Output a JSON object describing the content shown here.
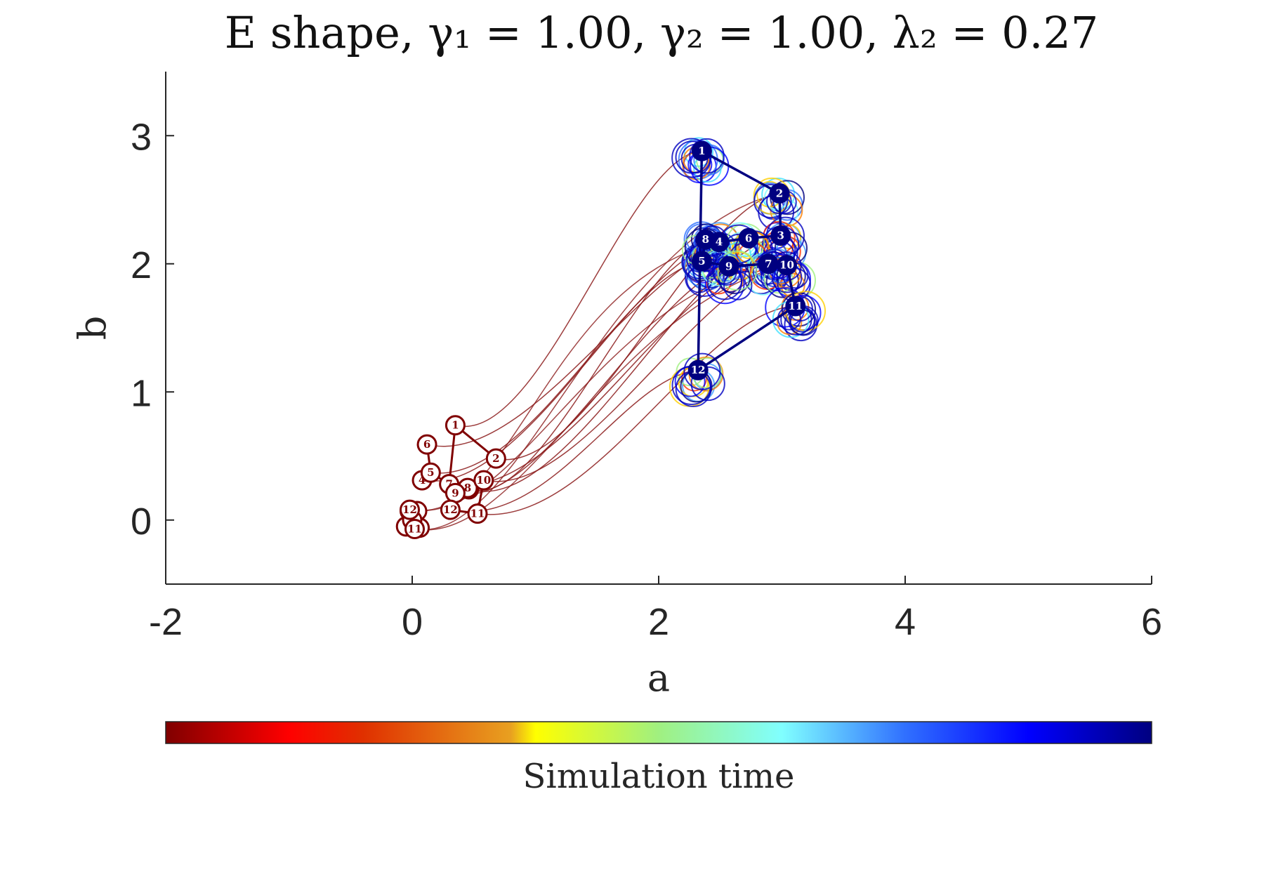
{
  "chart_data": {
    "type": "scatter",
    "title": "E shape, γ₁ = 1.00, γ₂ = 1.00, λ₂ = 0.27",
    "xlabel": "a",
    "ylabel": "b",
    "xlim": [
      -2,
      6
    ],
    "ylim": [
      -0.5,
      3.5
    ],
    "xticks": [
      -2,
      0,
      2,
      4,
      6
    ],
    "yticks": [
      0,
      1,
      2,
      3
    ],
    "grid": false,
    "colorbar": {
      "label": "Simulation time",
      "colormap": "jet",
      "position": "bottom"
    },
    "series": [
      {
        "name": "",
        "role": "initial",
        "color": "#800000",
        "points": [
          {
            "id": "1",
            "x": 0.35,
            "y": 0.74
          },
          {
            "id": "2",
            "x": 0.68,
            "y": 0.48
          },
          {
            "id": "3",
            "x": 0.46,
            "y": 0.24
          },
          {
            "id": "4",
            "x": 0.08,
            "y": 0.31
          },
          {
            "id": "5",
            "x": 0.15,
            "y": 0.37
          },
          {
            "id": "6",
            "x": 0.12,
            "y": 0.59
          },
          {
            "id": "7",
            "x": 0.3,
            "y": 0.28
          },
          {
            "id": "8",
            "x": 0.45,
            "y": 0.25
          },
          {
            "id": "9",
            "x": 0.35,
            "y": 0.21
          },
          {
            "id": "10",
            "x": 0.58,
            "y": 0.31
          },
          {
            "id": "11",
            "x": 0.53,
            "y": 0.05
          },
          {
            "id": "12",
            "x": 0.31,
            "y": 0.08
          }
        ],
        "cluster_points": [
          {
            "id": "12",
            "x": -0.02,
            "y": 0.08
          },
          {
            "id": "11",
            "x": 0.02,
            "y": -0.07
          }
        ]
      },
      {
        "name": "",
        "role": "final",
        "color": "#000080",
        "points": [
          {
            "id": "1",
            "x": 2.35,
            "y": 2.88
          },
          {
            "id": "2",
            "x": 2.98,
            "y": 2.55
          },
          {
            "id": "3",
            "x": 2.99,
            "y": 2.22
          },
          {
            "id": "4",
            "x": 2.49,
            "y": 2.17
          },
          {
            "id": "5",
            "x": 2.35,
            "y": 2.02
          },
          {
            "id": "6",
            "x": 2.73,
            "y": 2.2
          },
          {
            "id": "7",
            "x": 2.89,
            "y": 2.0
          },
          {
            "id": "8",
            "x": 2.38,
            "y": 2.19
          },
          {
            "id": "9",
            "x": 2.57,
            "y": 1.98
          },
          {
            "id": "10",
            "x": 3.04,
            "y": 1.99
          },
          {
            "id": "11",
            "x": 3.11,
            "y": 1.67
          },
          {
            "id": "12",
            "x": 2.32,
            "y": 1.17
          }
        ],
        "edges": [
          [
            "1",
            "2"
          ],
          [
            "2",
            "3"
          ],
          [
            "3",
            "6"
          ],
          [
            "6",
            "4"
          ],
          [
            "4",
            "8"
          ],
          [
            "8",
            "5"
          ],
          [
            "5",
            "9"
          ],
          [
            "9",
            "7"
          ],
          [
            "7",
            "10"
          ],
          [
            "10",
            "11"
          ],
          [
            "11",
            "12"
          ],
          [
            "12",
            "1"
          ]
        ]
      }
    ]
  }
}
